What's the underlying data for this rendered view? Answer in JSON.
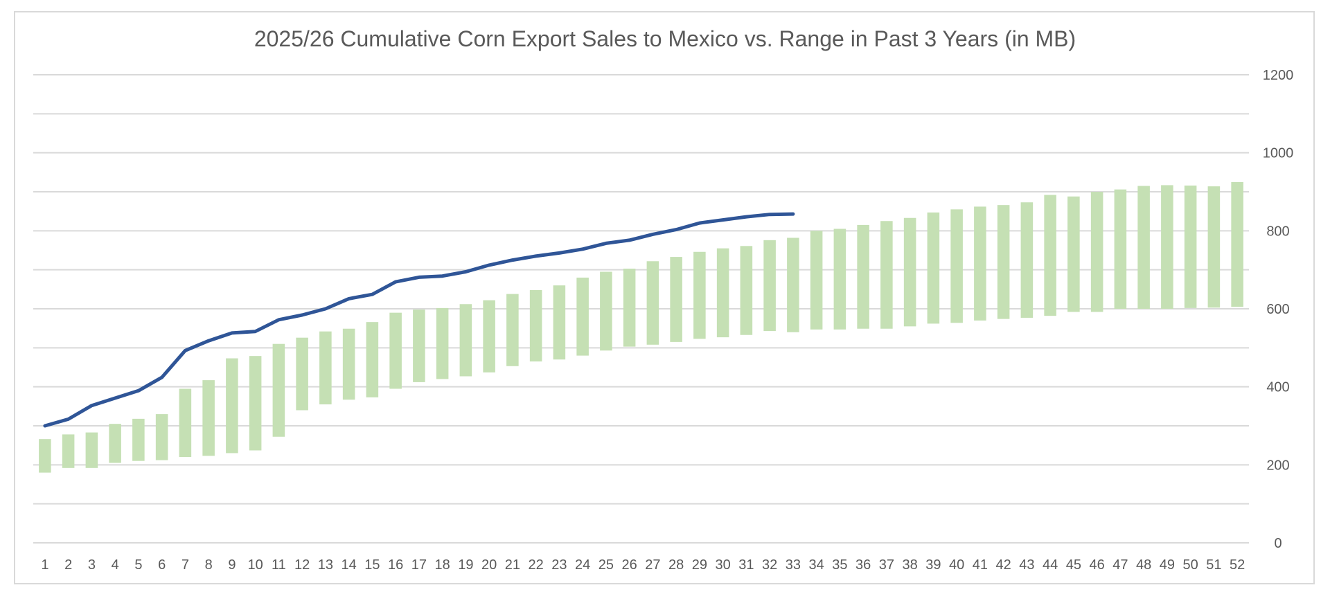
{
  "chart_data": {
    "type": "bar",
    "title": "2025/26 Cumulative Corn Export Sales to Mexico vs. Range in Past 3 Years (in MB)",
    "xlabel": "",
    "ylabel": "",
    "ylim": [
      0,
      1200
    ],
    "y_ticks": [
      0,
      200,
      400,
      600,
      800,
      1000,
      1200
    ],
    "y_axis_side": "right",
    "grid": true,
    "legend": "none",
    "categories": [
      "1",
      "2",
      "3",
      "4",
      "5",
      "6",
      "7",
      "8",
      "9",
      "10",
      "11",
      "12",
      "13",
      "14",
      "15",
      "16",
      "17",
      "18",
      "19",
      "20",
      "21",
      "22",
      "23",
      "24",
      "25",
      "26",
      "27",
      "28",
      "29",
      "30",
      "31",
      "32",
      "33",
      "34",
      "35",
      "36",
      "37",
      "38",
      "39",
      "40",
      "41",
      "42",
      "43",
      "44",
      "45",
      "46",
      "47",
      "48",
      "49",
      "50",
      "51",
      "52"
    ],
    "range_series": {
      "low": [
        180,
        192,
        192,
        205,
        210,
        212,
        220,
        223,
        230,
        237,
        272,
        340,
        355,
        367,
        373,
        395,
        412,
        420,
        427,
        437,
        453,
        465,
        470,
        480,
        493,
        503,
        508,
        515,
        523,
        527,
        533,
        543,
        540,
        547,
        547,
        549,
        549,
        555,
        562,
        564,
        570,
        574,
        577,
        582,
        592,
        592,
        600,
        600,
        600,
        602,
        603,
        605
      ],
      "high": [
        266,
        278,
        283,
        305,
        318,
        330,
        395,
        417,
        473,
        479,
        510,
        526,
        542,
        549,
        566,
        590,
        598,
        602,
        612,
        622,
        638,
        648,
        660,
        680,
        695,
        703,
        722,
        733,
        746,
        755,
        761,
        776,
        782,
        800,
        805,
        815,
        825,
        833,
        847,
        855,
        862,
        866,
        873,
        892,
        888,
        900,
        906,
        915,
        917,
        916,
        914,
        925
      ],
      "color": "#c5e0b4"
    },
    "line_series": {
      "values": [
        300,
        317,
        352,
        371,
        390,
        424,
        493,
        518,
        538,
        542,
        572,
        584,
        600,
        626,
        637,
        669,
        681,
        684,
        695,
        712,
        725,
        735,
        743,
        753,
        768,
        776,
        791,
        803,
        820,
        828,
        836,
        842,
        843
      ],
      "color": "#2f5597"
    }
  }
}
